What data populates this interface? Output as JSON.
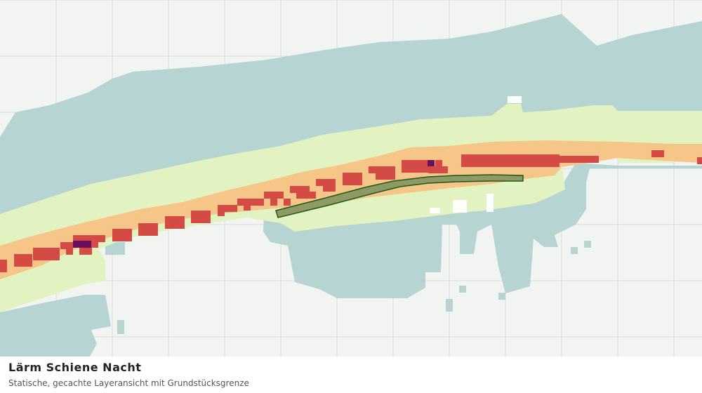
{
  "map": {
    "type": "raster-noise-map",
    "basemap": "light-grey-grid",
    "legend_colors": {
      "lowest": "#b6d5d2",
      "low": "#e2f2c1",
      "medium": "#f5c687",
      "high": "#d44a44",
      "highest": "#6b0f5c"
    },
    "basemap_color": "#f2f4f2",
    "grid_color": "#dddddd",
    "parcel_outline_color": "#1f5a14",
    "parcel_fill_color": "#8e9a66"
  },
  "footer": {
    "title": "Lärm Schiene Nacht",
    "subtitle": "Statische, gecachte Layeransicht mit Grundstücksgrenze"
  }
}
